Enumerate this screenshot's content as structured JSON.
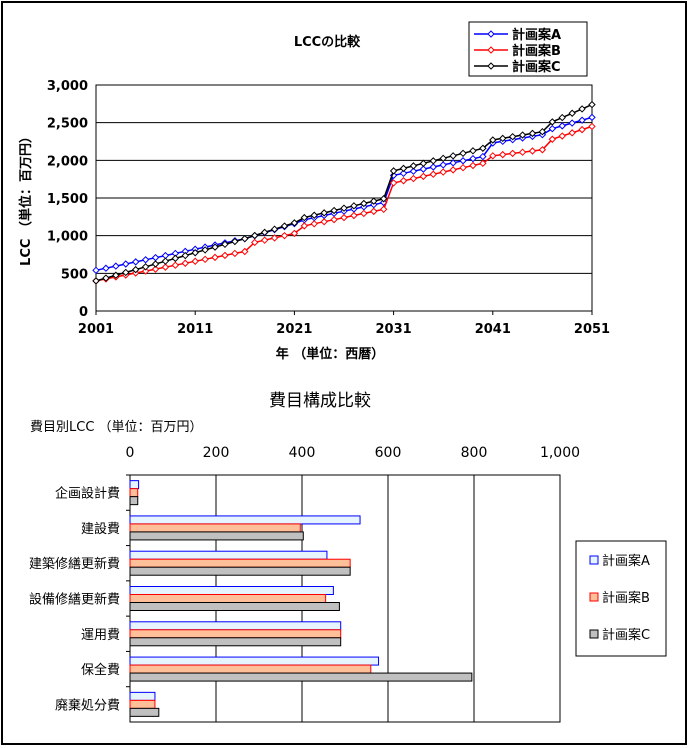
{
  "chart_data": [
    {
      "type": "line",
      "title": "LCCの比較",
      "ylabel": "LCC （単位：百万円）",
      "xlabel": "年 （単位：西暦）",
      "ylim": [
        0,
        3000
      ],
      "xlim": [
        2001,
        2051
      ],
      "y_ticks": [
        "0",
        "500",
        "1,000",
        "1,500",
        "2,000",
        "2,500",
        "3,000"
      ],
      "x_ticks": [
        "2001",
        "2011",
        "2021",
        "2031",
        "2041",
        "2051"
      ],
      "grid": "horizontal",
      "legend_position": "top-right",
      "colors": {
        "A": "#0000ff",
        "B": "#ff0000",
        "C": "#000000"
      },
      "series": [
        {
          "name": "計画案A",
          "points": [
            [
              2001,
              540
            ],
            [
              2016,
              960
            ],
            [
              2021,
              1160
            ],
            [
              2022,
              1210
            ],
            [
              2030,
              1440
            ],
            [
              2031,
              1800
            ],
            [
              2040,
              2050
            ],
            [
              2041,
              2230
            ],
            [
              2046,
              2340
            ],
            [
              2047,
              2420
            ],
            [
              2051,
              2570
            ]
          ]
        },
        {
          "name": "計画案B",
          "points": [
            [
              2001,
              400
            ],
            [
              2016,
              790
            ],
            [
              2017,
              910
            ],
            [
              2021,
              1030
            ],
            [
              2022,
              1130
            ],
            [
              2030,
              1350
            ],
            [
              2031,
              1700
            ],
            [
              2040,
              1960
            ],
            [
              2041,
              2060
            ],
            [
              2046,
              2140
            ],
            [
              2047,
              2280
            ],
            [
              2051,
              2450
            ]
          ]
        },
        {
          "name": "計画案C",
          "points": [
            [
              2001,
              400
            ],
            [
              2016,
              960
            ],
            [
              2021,
              1170
            ],
            [
              2022,
              1240
            ],
            [
              2030,
              1490
            ],
            [
              2031,
              1860
            ],
            [
              2040,
              2160
            ],
            [
              2041,
              2270
            ],
            [
              2046,
              2380
            ],
            [
              2047,
              2510
            ],
            [
              2051,
              2740
            ]
          ]
        }
      ]
    },
    {
      "type": "bar",
      "orientation": "horizontal",
      "title": "費目構成比較",
      "ylabel": "費目別LCC （単位：百万円）",
      "xlim": [
        0,
        1000
      ],
      "x_ticks": [
        "0",
        "200",
        "400",
        "600",
        "800",
        "1,000"
      ],
      "legend_position": "right",
      "categories": [
        "企画設計費",
        "建設費",
        "建築修繕更新費",
        "設備修繕更新費",
        "運用費",
        "保全費",
        "廃棄処分費"
      ],
      "colors": {
        "A": "#e5f4ff",
        "B": "#ffbf99",
        "C": "#c0c0c0",
        "A_border": "#0000ff",
        "B_border": "#ff0000",
        "C_border": "#000000"
      },
      "series": [
        {
          "name": "計画案A",
          "values": [
            20,
            535,
            458,
            473,
            490,
            578,
            58
          ]
        },
        {
          "name": "計画案B",
          "values": [
            18,
            396,
            512,
            455,
            490,
            560,
            58
          ]
        },
        {
          "name": "計画案C",
          "values": [
            18,
            403,
            512,
            487,
            490,
            795,
            67
          ]
        }
      ]
    }
  ]
}
